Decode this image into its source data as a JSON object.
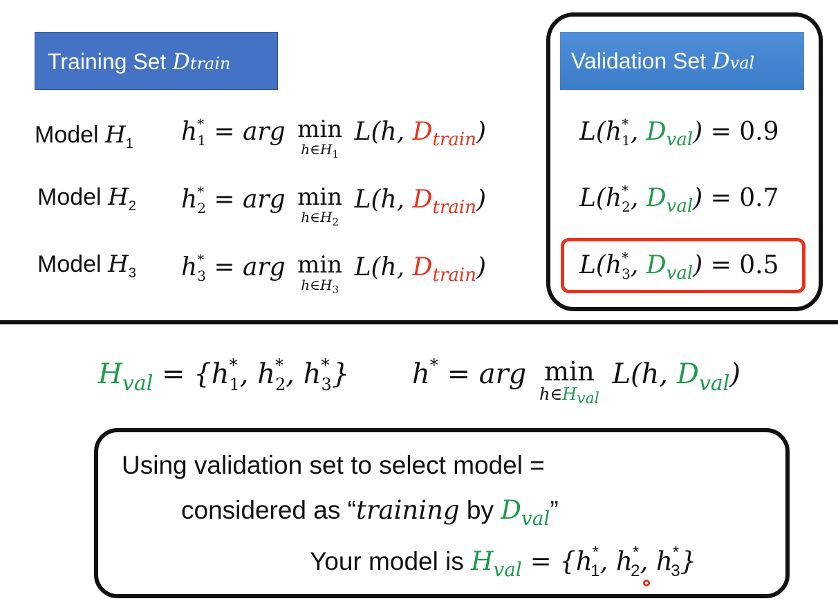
{
  "train_header": {
    "text": "Training Set ",
    "script": "D",
    "sub": "train"
  },
  "val_header": {
    "text": "Validation Set ",
    "script": "D",
    "sub": "val"
  },
  "models": [
    {
      "label": "Model ",
      "script": "H",
      "index": "1",
      "h": "h",
      "star": "*",
      "eq": " = arg ",
      "min": "min",
      "under_h": "h∈",
      "under_H": "H",
      "under_idx": "1",
      "L_open": " L(h, ",
      "D": "D",
      "D_sub": "train",
      "close": ")"
    },
    {
      "label": "Model ",
      "script": "H",
      "index": "2",
      "h": "h",
      "star": "*",
      "eq": " = arg ",
      "min": "min",
      "under_h": "h∈",
      "under_H": "H",
      "under_idx": "2",
      "L_open": " L(h, ",
      "D": "D",
      "D_sub": "train",
      "close": ")"
    },
    {
      "label": "Model ",
      "script": "H",
      "index": "3",
      "h": "h",
      "star": "*",
      "eq": " = arg ",
      "min": "min",
      "under_h": "h∈",
      "under_H": "H",
      "under_idx": "3",
      "L_open": " L(h, ",
      "D": "D",
      "D_sub": "train",
      "close": ")"
    }
  ],
  "val_losses": [
    {
      "L": "L(h",
      "idx": "1",
      "star": "*",
      "comma": ", ",
      "D": "D",
      "sub": "val",
      "close": ") = ",
      "value": "0.9"
    },
    {
      "L": "L(h",
      "idx": "2",
      "star": "*",
      "comma": ", ",
      "D": "D",
      "sub": "val",
      "close": ") = ",
      "value": "0.7"
    },
    {
      "L": "L(h",
      "idx": "3",
      "star": "*",
      "comma": ", ",
      "D": "D",
      "sub": "val",
      "close": ") = ",
      "value": "0.5"
    }
  ],
  "middle": {
    "H": "H",
    "H_sub": "val",
    "set": " = {h",
    "i1": "1",
    "c1": ", h",
    "i2": "2",
    "c2": ", h",
    "i3": "3",
    "set_close": "}",
    "star": "*",
    "hstar": "h",
    "eq": " = arg ",
    "min": "min",
    "under_h": "h∈",
    "under_H": "H",
    "under_sub": "val",
    "L_open": " L(h, ",
    "D": "D",
    "D_sub": "val",
    "close": ")"
  },
  "note": {
    "line1": "Using validation set to select model =",
    "line2_a": "considered as “",
    "line2_em": "training",
    "line2_b": " by ",
    "line2_D": "D",
    "line2_sub": "val",
    "line2_c": "”",
    "line3_a": "Your model is  ",
    "line3_H": "H",
    "line3_sub": "val",
    "line3_set": " = {h",
    "i1": "1",
    "c1": ", h",
    "i2": "2",
    "c2": ", h",
    "i3": "3",
    "set_close": "}",
    "star": "*"
  }
}
